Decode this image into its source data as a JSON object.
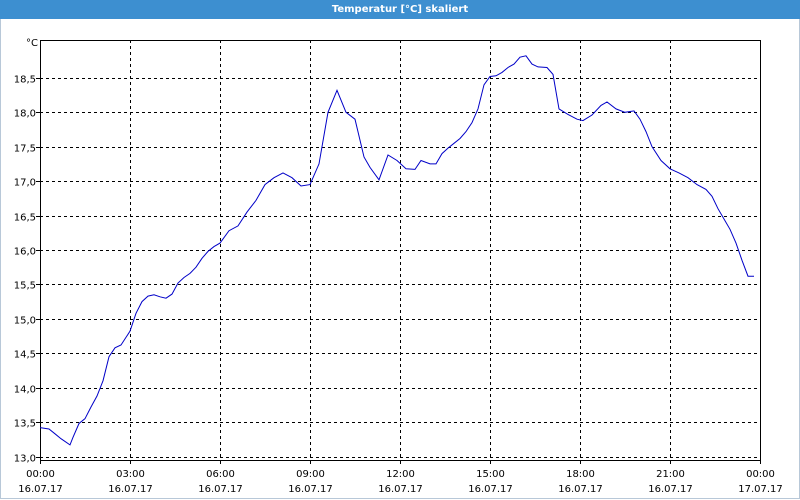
{
  "window": {
    "title": "Temperatur [°C] skaliert"
  },
  "chart_data": {
    "type": "line",
    "title": "Temperatur [°C] skaliert",
    "ylabel": "°C",
    "xlabel": "",
    "ylim": [
      12.95,
      19.05
    ],
    "xlim": [
      0,
      24
    ],
    "grid": true,
    "line_color": "#0000c8",
    "y_ticks": [
      "13,0",
      "13,5",
      "14,0",
      "14,5",
      "15,0",
      "15,5",
      "16,0",
      "16,5",
      "17,0",
      "17,5",
      "18,0",
      "18,5"
    ],
    "y_tick_values": [
      13.0,
      13.5,
      14.0,
      14.5,
      15.0,
      15.5,
      16.0,
      16.5,
      17.0,
      17.5,
      18.0,
      18.5
    ],
    "x_ticks": [
      {
        "time": "00:00",
        "date": "16.07.17"
      },
      {
        "time": "03:00",
        "date": "16.07.17"
      },
      {
        "time": "06:00",
        "date": "16.07.17"
      },
      {
        "time": "09:00",
        "date": "16.07.17"
      },
      {
        "time": "12:00",
        "date": "16.07.17"
      },
      {
        "time": "15:00",
        "date": "16.07.17"
      },
      {
        "time": "18:00",
        "date": "16.07.17"
      },
      {
        "time": "21:00",
        "date": "16.07.17"
      },
      {
        "time": "00:00",
        "date": "17.07.17"
      }
    ],
    "x_tick_hours": [
      0,
      3,
      6,
      9,
      12,
      15,
      18,
      21,
      24
    ],
    "series": [
      {
        "x": [
          0,
          0.3,
          0.5,
          0.7,
          1.0,
          1.1,
          1.3,
          1.5,
          1.7,
          1.9,
          2.1,
          2.3,
          2.5,
          2.7,
          3.0,
          3.2,
          3.4,
          3.6,
          3.8,
          4.0,
          4.2,
          4.4,
          4.6,
          4.8,
          5.0,
          5.2,
          5.4,
          5.6,
          5.8,
          6.0,
          6.3,
          6.6,
          6.9,
          7.2,
          7.5,
          7.8,
          8.1,
          8.4,
          8.7,
          9.0,
          9.3,
          9.6,
          9.9,
          10.2,
          10.5,
          10.8,
          11.0,
          11.3,
          11.6,
          11.9,
          12.2,
          12.5,
          12.7,
          13.0,
          13.2,
          13.4,
          13.6,
          13.8,
          14.0,
          14.2,
          14.4,
          14.6,
          14.8,
          15.0,
          15.2,
          15.4,
          15.6,
          15.8,
          16.0,
          16.2,
          16.4,
          16.6,
          16.9,
          17.1,
          17.3,
          17.6,
          17.9,
          18.1,
          18.4,
          18.7,
          18.9,
          19.2,
          19.5,
          19.8,
          20.0,
          20.2,
          20.4,
          20.7,
          21.0,
          21.3,
          21.6,
          21.9,
          22.2,
          22.4,
          22.6,
          22.8,
          23.0,
          23.2,
          23.4,
          23.6,
          23.8
        ],
        "y": [
          13.42,
          13.4,
          13.33,
          13.26,
          13.17,
          13.28,
          13.48,
          13.55,
          13.72,
          13.88,
          14.1,
          14.45,
          14.58,
          14.62,
          14.82,
          15.08,
          15.25,
          15.33,
          15.35,
          15.32,
          15.3,
          15.36,
          15.52,
          15.6,
          15.66,
          15.75,
          15.88,
          15.98,
          16.05,
          16.1,
          16.28,
          16.35,
          16.55,
          16.72,
          16.95,
          17.05,
          17.12,
          17.05,
          16.93,
          16.95,
          17.25,
          18.0,
          18.32,
          18.0,
          17.9,
          17.35,
          17.2,
          17.02,
          17.38,
          17.3,
          17.18,
          17.17,
          17.3,
          17.25,
          17.25,
          17.4,
          17.48,
          17.55,
          17.62,
          17.72,
          17.85,
          18.05,
          18.4,
          18.52,
          18.53,
          18.58,
          18.65,
          18.7,
          18.8,
          18.82,
          18.7,
          18.66,
          18.65,
          18.55,
          18.05,
          17.97,
          17.9,
          17.88,
          17.96,
          18.1,
          18.15,
          18.05,
          18.0,
          18.02,
          17.9,
          17.72,
          17.5,
          17.3,
          17.18,
          17.12,
          17.05,
          16.95,
          16.88,
          16.78,
          16.6,
          16.45,
          16.3,
          16.1,
          15.85,
          15.62,
          15.62
        ]
      }
    ]
  }
}
